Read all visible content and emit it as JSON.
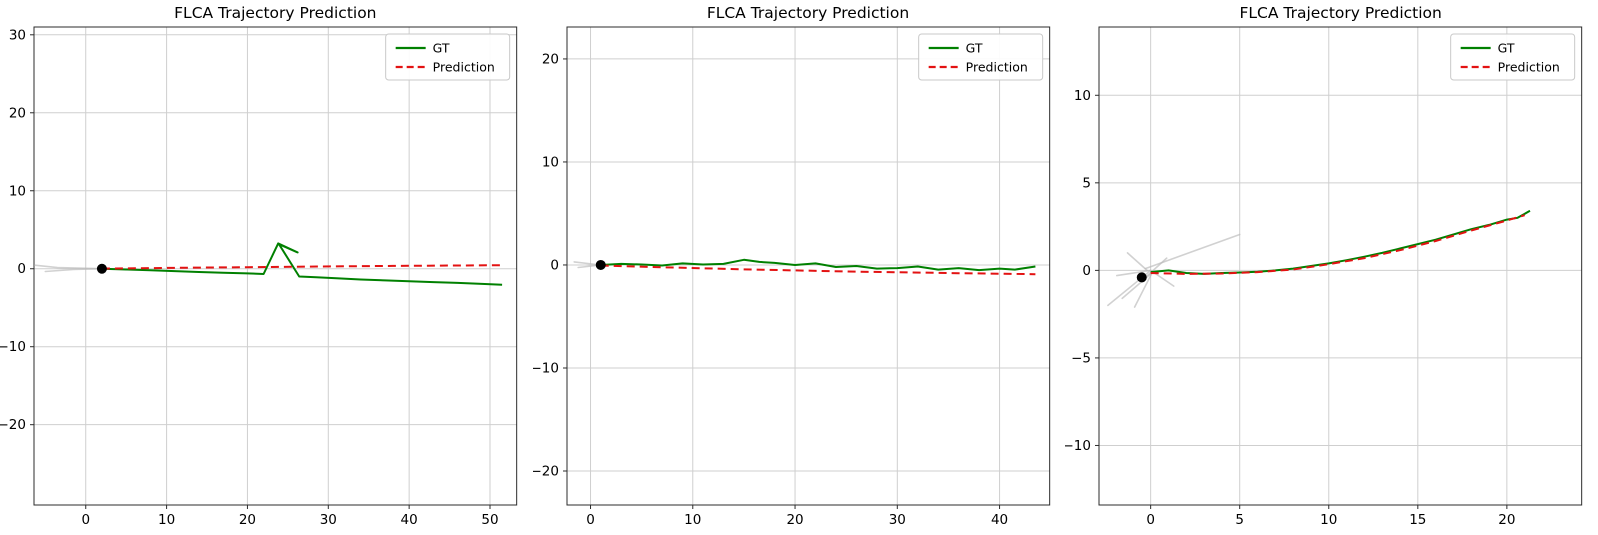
{
  "figure": {
    "background": "#ffffff"
  },
  "style": {
    "grid_color": "#cfcfcf",
    "spine_color": "#2b2b2b",
    "tick_color": "#2b2b2b",
    "text_color": "#000000",
    "history_color": "#b9b9b9",
    "marker_color": "#000000",
    "legend_border": "#c9c9c9",
    "gt_color": "#008000",
    "prediction_color": "#e31212"
  },
  "chart_data": [
    {
      "type": "line",
      "title": "FLCA Trajectory Prediction",
      "xlabel": "",
      "ylabel": "",
      "grid": true,
      "legend_position": "upper right",
      "xlim": [
        -6.4,
        53.3
      ],
      "ylim": [
        -30.3,
        31.0
      ],
      "xticks": [
        0,
        10,
        20,
        30,
        40,
        50
      ],
      "yticks": [
        -20,
        -10,
        0,
        10,
        20,
        30
      ],
      "start_marker": {
        "x": 2,
        "y": 0
      },
      "history_lines": [
        [
          [
            -6.3,
            0.45
          ],
          [
            -3.5,
            0.15
          ],
          [
            2,
            0
          ]
        ],
        [
          [
            -5.0,
            -0.35
          ],
          [
            -1.5,
            -0.1
          ],
          [
            2,
            0
          ]
        ]
      ],
      "series": [
        {
          "name": "GT",
          "color": "#008000",
          "style": "solid",
          "points": [
            [
              2,
              0
            ],
            [
              5,
              -0.1
            ],
            [
              8,
              -0.2
            ],
            [
              11,
              -0.3
            ],
            [
              14,
              -0.42
            ],
            [
              17,
              -0.52
            ],
            [
              20,
              -0.6
            ],
            [
              22,
              -0.68
            ],
            [
              23.8,
              3.25
            ],
            [
              26.2,
              2.1
            ],
            [
              23.9,
              3.15
            ],
            [
              26.4,
              -1.0
            ],
            [
              28.5,
              -1.1
            ],
            [
              31,
              -1.22
            ],
            [
              34,
              -1.38
            ],
            [
              37,
              -1.5
            ],
            [
              40,
              -1.6
            ],
            [
              43,
              -1.72
            ],
            [
              46,
              -1.82
            ],
            [
              49,
              -1.95
            ],
            [
              51.5,
              -2.05
            ]
          ]
        },
        {
          "name": "Prediction",
          "color": "#e31212",
          "style": "dashed",
          "points": [
            [
              2,
              0.02
            ],
            [
              8,
              0.08
            ],
            [
              14,
              0.14
            ],
            [
              20,
              0.2
            ],
            [
              26,
              0.26
            ],
            [
              32,
              0.31
            ],
            [
              38,
              0.36
            ],
            [
              44,
              0.4
            ],
            [
              51.5,
              0.45
            ]
          ]
        }
      ]
    },
    {
      "type": "line",
      "title": "FLCA Trajectory Prediction",
      "xlabel": "",
      "ylabel": "",
      "grid": true,
      "legend_position": "upper right",
      "xlim": [
        -2.3,
        44.9
      ],
      "ylim": [
        -23.3,
        23.1
      ],
      "xticks": [
        0,
        10,
        20,
        30,
        40
      ],
      "yticks": [
        -20,
        -10,
        0,
        10,
        20
      ],
      "start_marker": {
        "x": 1,
        "y": 0
      },
      "history_lines": [
        [
          [
            -1.6,
            0.3
          ],
          [
            1,
            0
          ]
        ],
        [
          [
            -1.2,
            -0.25
          ],
          [
            1,
            0
          ]
        ]
      ],
      "series": [
        {
          "name": "GT",
          "color": "#008000",
          "style": "solid",
          "points": [
            [
              1,
              0
            ],
            [
              3,
              0.1
            ],
            [
              5,
              0.05
            ],
            [
              7,
              -0.05
            ],
            [
              9,
              0.15
            ],
            [
              11,
              0.05
            ],
            [
              13,
              0.1
            ],
            [
              15,
              0.5
            ],
            [
              16.5,
              0.3
            ],
            [
              18,
              0.2
            ],
            [
              20,
              0
            ],
            [
              22,
              0.15
            ],
            [
              24,
              -0.2
            ],
            [
              26,
              -0.1
            ],
            [
              28,
              -0.35
            ],
            [
              30,
              -0.3
            ],
            [
              32,
              -0.15
            ],
            [
              34,
              -0.45
            ],
            [
              36,
              -0.3
            ],
            [
              38,
              -0.5
            ],
            [
              40,
              -0.35
            ],
            [
              41.5,
              -0.45
            ],
            [
              43.5,
              -0.15
            ]
          ]
        },
        {
          "name": "Prediction",
          "color": "#e31212",
          "style": "dashed",
          "points": [
            [
              1,
              -0.05
            ],
            [
              6,
              -0.2
            ],
            [
              11,
              -0.32
            ],
            [
              16,
              -0.45
            ],
            [
              21,
              -0.55
            ],
            [
              26,
              -0.65
            ],
            [
              31,
              -0.72
            ],
            [
              36,
              -0.8
            ],
            [
              40,
              -0.85
            ],
            [
              43.5,
              -0.9
            ]
          ]
        }
      ]
    },
    {
      "type": "line",
      "title": "FLCA Trajectory Prediction",
      "xlabel": "",
      "ylabel": "",
      "grid": true,
      "legend_position": "upper right",
      "xlim": [
        -2.9,
        24.2
      ],
      "ylim": [
        -13.4,
        13.9
      ],
      "xticks": [
        0,
        5,
        10,
        15,
        20
      ],
      "yticks": [
        -10,
        -5,
        0,
        5,
        10
      ],
      "start_marker": {
        "x": -0.5,
        "y": -0.4
      },
      "history_lines": [
        [
          [
            -0.3,
            0.1
          ],
          [
            5,
            2.05
          ]
        ],
        [
          [
            0,
            0
          ],
          [
            -2.4,
            -2.0
          ]
        ],
        [
          [
            0,
            -0.2
          ],
          [
            -1.6,
            -1.6
          ]
        ],
        [
          [
            -0.2,
            0
          ],
          [
            -1.3,
            1.0
          ]
        ],
        [
          [
            0,
            0
          ],
          [
            1.3,
            -0.9
          ]
        ],
        [
          [
            -0.4,
            -0.5
          ],
          [
            0.9,
            0.7
          ]
        ],
        [
          [
            0.1,
            -0.1
          ],
          [
            -0.9,
            -2.1
          ]
        ],
        [
          [
            0,
            0
          ],
          [
            -1.9,
            -0.3
          ]
        ]
      ],
      "series": [
        {
          "name": "GT",
          "color": "#008000",
          "style": "solid",
          "points": [
            [
              0,
              -0.1
            ],
            [
              1,
              0
            ],
            [
              2,
              -0.15
            ],
            [
              3,
              -0.2
            ],
            [
              4,
              -0.15
            ],
            [
              5,
              -0.12
            ],
            [
              6,
              -0.08
            ],
            [
              7,
              0
            ],
            [
              8,
              0.1
            ],
            [
              9,
              0.25
            ],
            [
              10,
              0.4
            ],
            [
              11,
              0.58
            ],
            [
              12,
              0.78
            ],
            [
              13,
              1.0
            ],
            [
              14,
              1.25
            ],
            [
              15,
              1.5
            ],
            [
              16,
              1.75
            ],
            [
              17,
              2.05
            ],
            [
              18,
              2.35
            ],
            [
              19,
              2.6
            ],
            [
              20,
              2.9
            ],
            [
              20.6,
              3.0
            ],
            [
              21.3,
              3.4
            ]
          ]
        },
        {
          "name": "Prediction",
          "color": "#e31212",
          "style": "dashed",
          "points": [
            [
              0,
              -0.15
            ],
            [
              2,
              -0.2
            ],
            [
              4,
              -0.18
            ],
            [
              6,
              -0.1
            ],
            [
              8,
              0.05
            ],
            [
              10,
              0.35
            ],
            [
              12,
              0.7
            ],
            [
              14,
              1.15
            ],
            [
              16,
              1.68
            ],
            [
              18,
              2.28
            ],
            [
              20,
              2.85
            ],
            [
              21,
              3.15
            ]
          ]
        }
      ]
    }
  ]
}
